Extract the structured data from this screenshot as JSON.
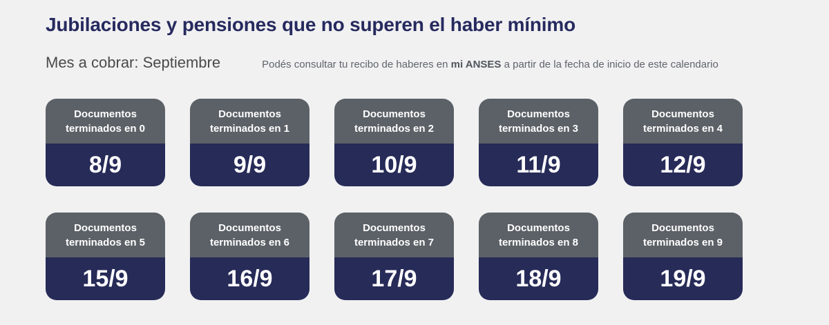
{
  "header": {
    "title": "Jubilaciones y pensiones que no superen el haber mínimo",
    "month_label": "Mes a cobrar: Septiembre",
    "note": {
      "prefix": "Podés consultar tu recibo de haberes en ",
      "bold": "mi ANSES",
      "suffix": " a partir de la fecha de inicio de este calendario"
    }
  },
  "colors": {
    "background": "#f1f1f2",
    "title_navy": "#262a5e",
    "card_header_gray": "#5c6167",
    "card_body_navy": "#272b58",
    "card_text": "#ffffff"
  },
  "cards": [
    {
      "label_line1": "Documentos",
      "label_line2": "terminados en 0",
      "date": "8/9"
    },
    {
      "label_line1": "Documentos",
      "label_line2": "terminados en 1",
      "date": "9/9"
    },
    {
      "label_line1": "Documentos",
      "label_line2": "terminados en 2",
      "date": "10/9"
    },
    {
      "label_line1": "Documentos",
      "label_line2": "terminados en 3",
      "date": "11/9"
    },
    {
      "label_line1": "Documentos",
      "label_line2": "terminados en 4",
      "date": "12/9"
    },
    {
      "label_line1": "Documentos",
      "label_line2": "terminados en 5",
      "date": "15/9"
    },
    {
      "label_line1": "Documentos",
      "label_line2": "terminados en 6",
      "date": "16/9"
    },
    {
      "label_line1": "Documentos",
      "label_line2": "terminados en 7",
      "date": "17/9"
    },
    {
      "label_line1": "Documentos",
      "label_line2": "terminados en 8",
      "date": "18/9"
    },
    {
      "label_line1": "Documentos",
      "label_line2": "terminados en 9",
      "date": "19/9"
    }
  ]
}
